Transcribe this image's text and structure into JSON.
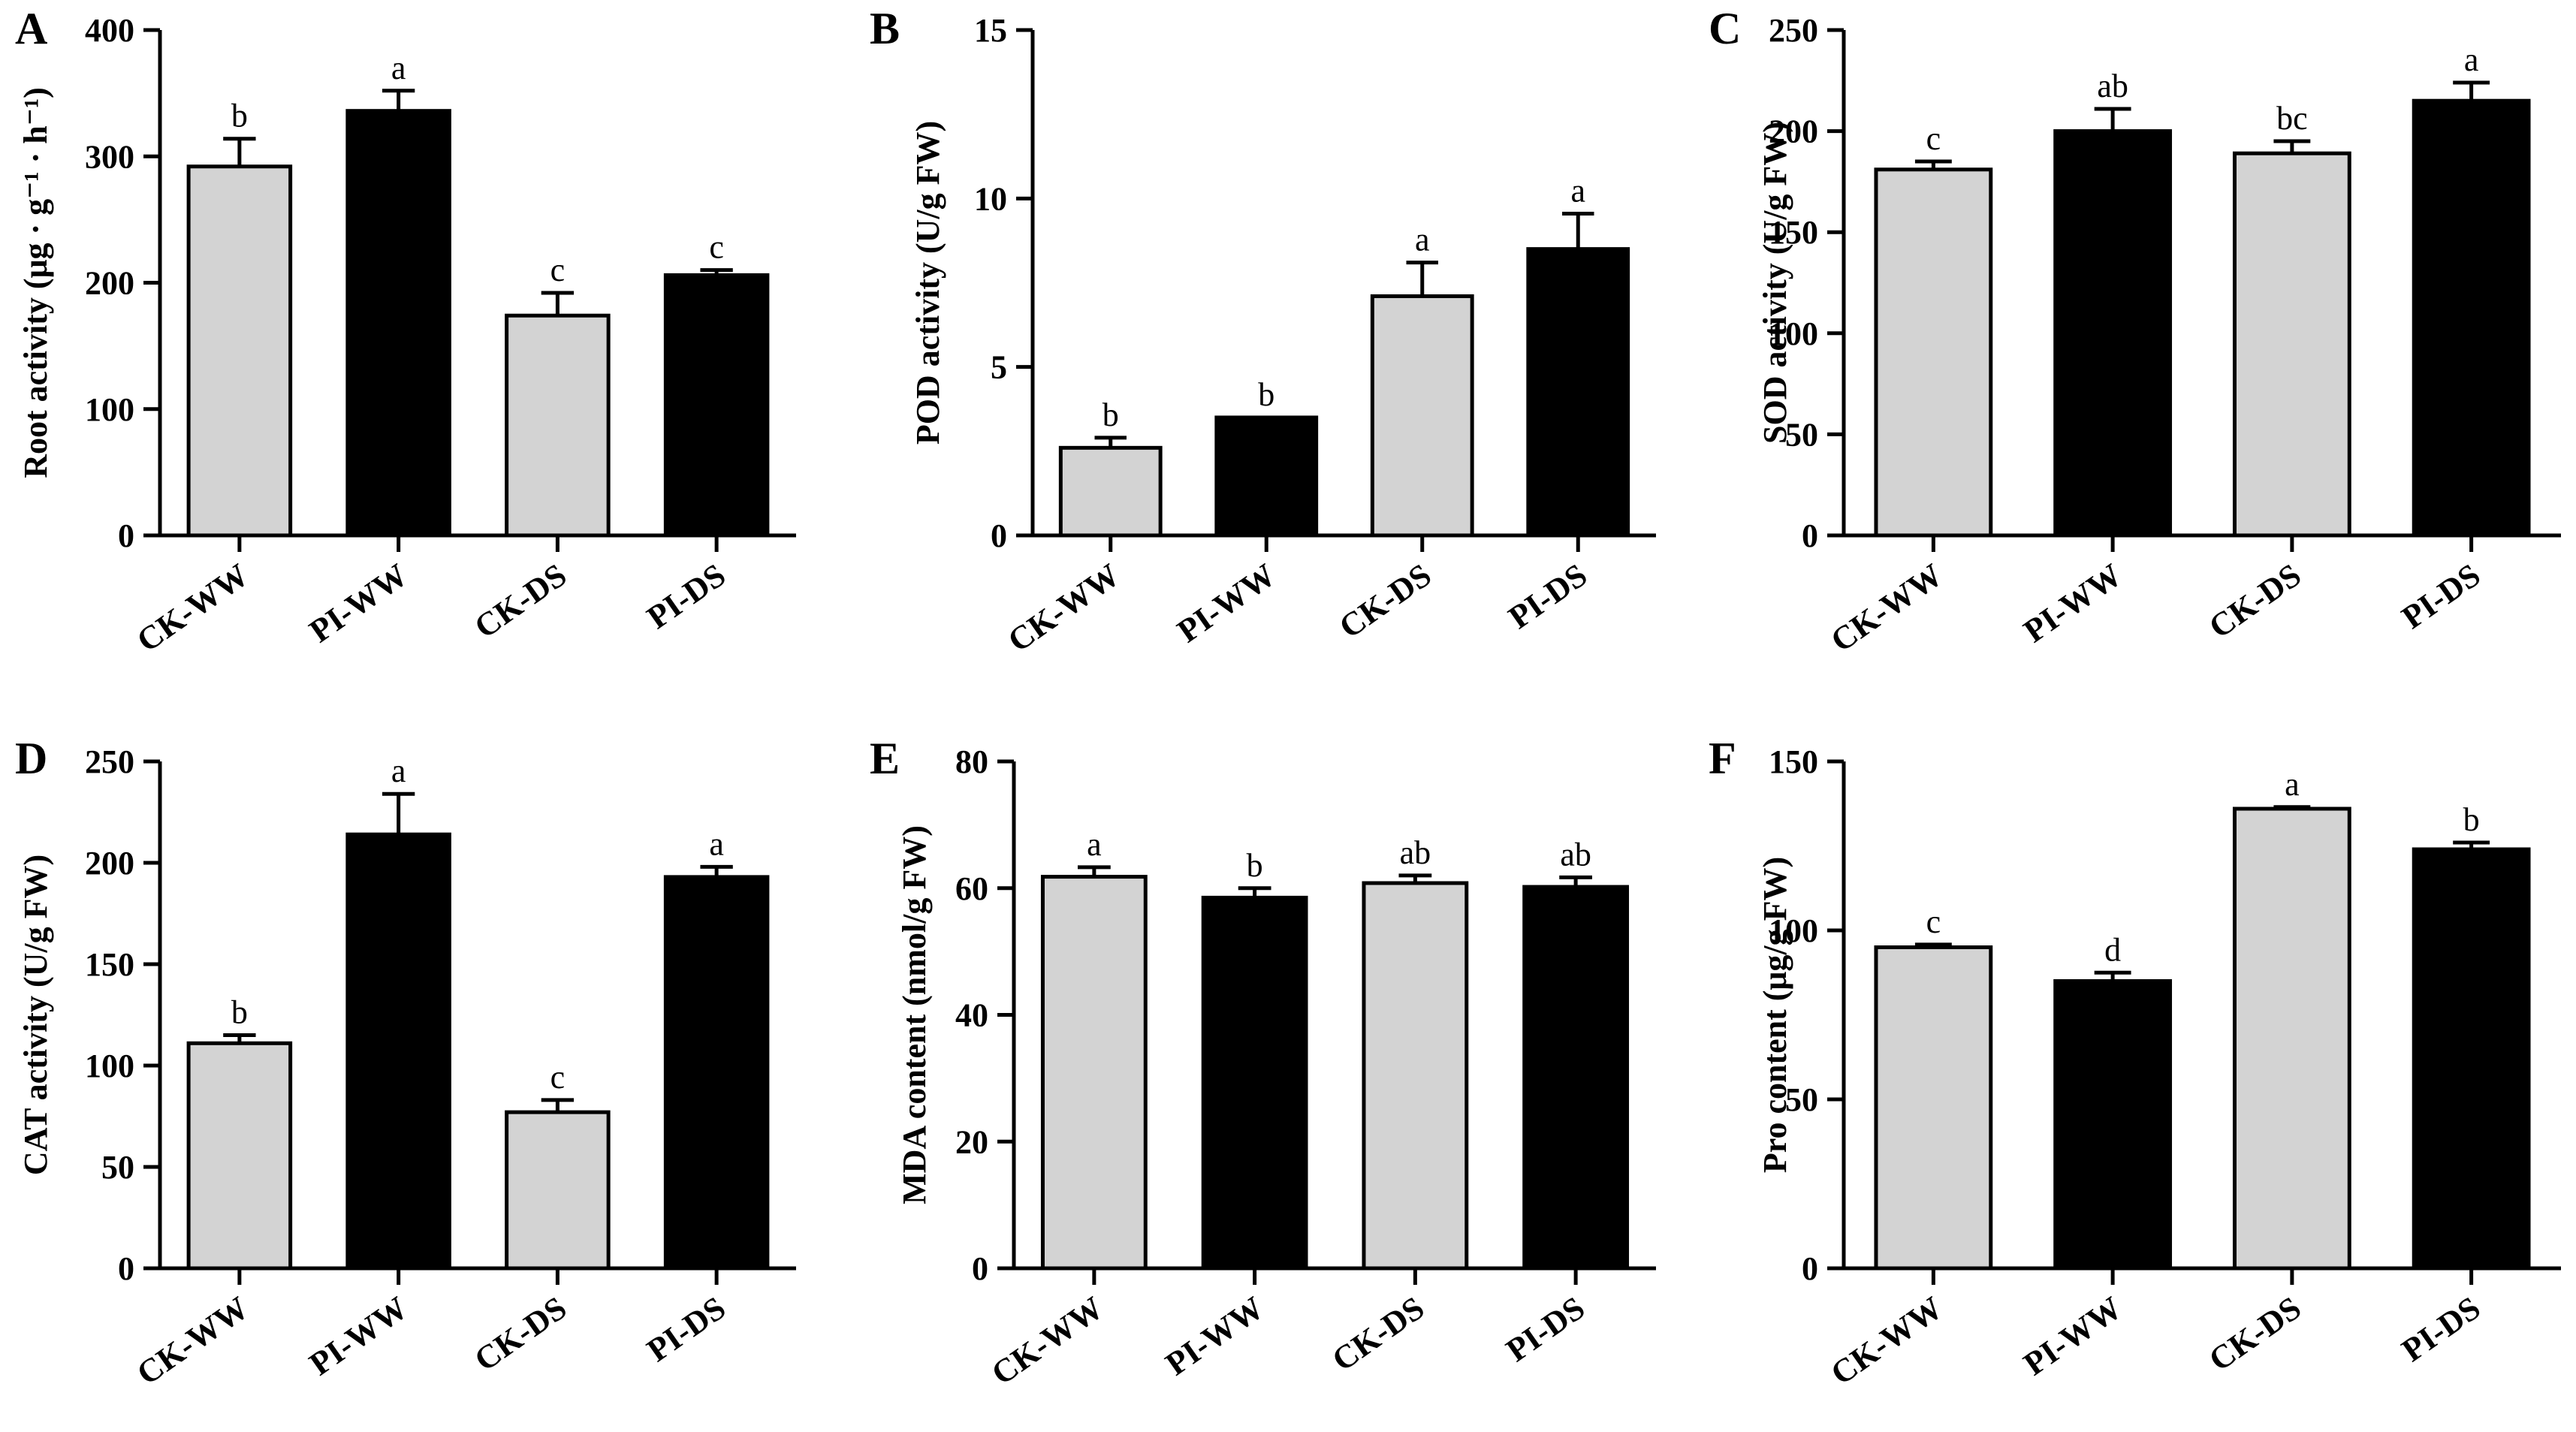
{
  "figure": {
    "colors": {
      "ck": "#d3d3d3",
      "pi": "#000000",
      "axis": "#000000"
    },
    "categories": [
      "CK-WW",
      "PI-WW",
      "CK-DS",
      "PI-DS"
    ]
  },
  "chart_data": [
    {
      "panel": "A",
      "type": "bar",
      "ylabel": "Root activity (μg · g⁻¹ · h⁻¹)",
      "ylim": [
        0,
        400
      ],
      "yticks": [
        "0",
        "100",
        "200",
        "300",
        "400"
      ],
      "categories": [
        "CK-WW",
        "PI-WW",
        "CK-DS",
        "PI-DS"
      ],
      "values": [
        292,
        336,
        174,
        206
      ],
      "errors": [
        22,
        16,
        18,
        4
      ],
      "letters": [
        "b",
        "a",
        "c",
        "c"
      ]
    },
    {
      "panel": "B",
      "type": "bar",
      "ylabel": "POD activity (U/g FW)",
      "ylim": [
        0,
        15
      ],
      "yticks": [
        "0",
        "5",
        "10",
        "15"
      ],
      "categories": [
        "CK-WW",
        "PI-WW",
        "CK-DS",
        "PI-DS"
      ],
      "values": [
        2.6,
        3.5,
        7.1,
        8.5
      ],
      "errors": [
        0.3,
        0.0,
        1.0,
        1.05
      ],
      "letters": [
        "b",
        "b",
        "a",
        "a"
      ]
    },
    {
      "panel": "C",
      "type": "bar",
      "ylabel": "SOD activity (U/g FW)",
      "ylim": [
        0,
        250
      ],
      "yticks": [
        "0",
        "50",
        "100",
        "150",
        "200",
        "250"
      ],
      "categories": [
        "CK-WW",
        "PI-WW",
        "CK-DS",
        "PI-DS"
      ],
      "values": [
        181,
        200,
        189,
        215
      ],
      "errors": [
        4,
        11,
        6,
        9
      ],
      "letters": [
        "c",
        "ab",
        "bc",
        "a"
      ]
    },
    {
      "panel": "D",
      "type": "bar",
      "ylabel": "CAT activity (U/g FW)",
      "ylim": [
        0,
        250
      ],
      "yticks": [
        "0",
        "50",
        "100",
        "150",
        "200",
        "250"
      ],
      "categories": [
        "CK-WW",
        "PI-WW",
        "CK-DS",
        "PI-DS"
      ],
      "values": [
        111,
        214,
        77,
        193
      ],
      "errors": [
        4,
        20,
        6,
        5
      ],
      "letters": [
        "b",
        "a",
        "c",
        "a"
      ]
    },
    {
      "panel": "E",
      "type": "bar",
      "ylabel": "MDA content (nmol/g FW)",
      "ylim": [
        0,
        80
      ],
      "yticks": [
        "0",
        "20",
        "40",
        "60",
        "80"
      ],
      "categories": [
        "CK-WW",
        "PI-WW",
        "CK-DS",
        "PI-DS"
      ],
      "values": [
        61.8,
        58.5,
        60.8,
        60.2
      ],
      "errors": [
        1.5,
        1.5,
        1.2,
        1.5
      ],
      "letters": [
        "a",
        "b",
        "ab",
        "ab"
      ]
    },
    {
      "panel": "F",
      "type": "bar",
      "ylabel": "Pro content (μg/g FW)",
      "ylim": [
        0,
        150
      ],
      "yticks": [
        "0",
        "50",
        "100",
        "150"
      ],
      "categories": [
        "CK-WW",
        "PI-WW",
        "CK-DS",
        "PI-DS"
      ],
      "values": [
        95,
        85,
        136,
        124
      ],
      "errors": [
        0.8,
        2.5,
        0.5,
        2.0
      ],
      "letters": [
        "c",
        "d",
        "a",
        "b"
      ]
    }
  ]
}
